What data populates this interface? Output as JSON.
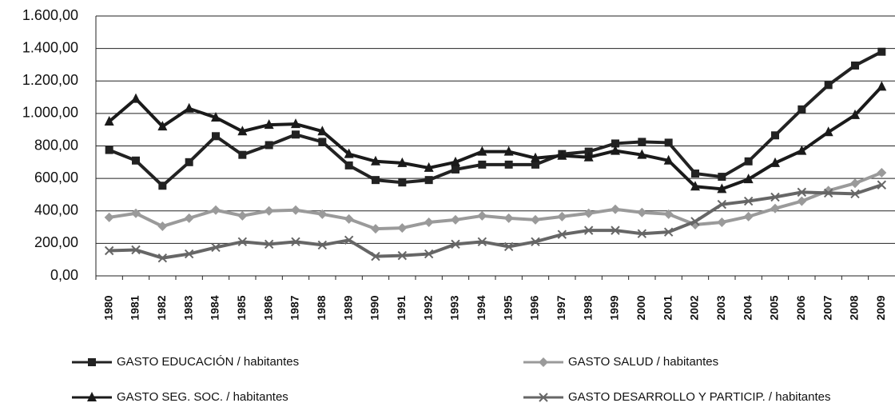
{
  "chart_data": {
    "type": "line",
    "categories": [
      "1980",
      "1981",
      "1982",
      "1983",
      "1984",
      "1985",
      "1986",
      "1987",
      "1988",
      "1989",
      "1990",
      "1991",
      "1992",
      "1993",
      "1994",
      "1995",
      "1996",
      "1997",
      "1998",
      "1999",
      "2000",
      "2001",
      "2002",
      "2003",
      "2004",
      "2005",
      "2006",
      "2007",
      "2008",
      "2009"
    ],
    "series": [
      {
        "name": "GASTO EDUCACIÓN / habitantes",
        "color": "#222222",
        "marker": "square",
        "values": [
          775,
          710,
          555,
          700,
          860,
          745,
          805,
          870,
          825,
          680,
          590,
          575,
          590,
          655,
          685,
          685,
          685,
          750,
          765,
          815,
          825,
          820,
          630,
          610,
          705,
          865,
          1025,
          1175,
          1295,
          1380
        ]
      },
      {
        "name": "GASTO SALUD / habitantes",
        "color": "#9a9a9a",
        "marker": "diamond",
        "values": [
          360,
          385,
          305,
          355,
          405,
          370,
          400,
          405,
          380,
          350,
          290,
          295,
          330,
          345,
          370,
          355,
          345,
          365,
          385,
          410,
          390,
          380,
          315,
          330,
          365,
          415,
          460,
          525,
          570,
          635
        ]
      },
      {
        "name": "GASTO SEG. SOC. / habitantes",
        "color": "#1a1a1a",
        "marker": "triangle",
        "values": [
          950,
          1090,
          920,
          1030,
          975,
          890,
          930,
          935,
          890,
          750,
          705,
          695,
          665,
          700,
          765,
          765,
          725,
          740,
          730,
          770,
          745,
          710,
          550,
          535,
          595,
          695,
          770,
          885,
          990,
          1165
        ]
      },
      {
        "name": "GASTO DESARROLLO Y PARTICIP. / habitantes",
        "color": "#666666",
        "marker": "x",
        "values": [
          155,
          160,
          110,
          135,
          175,
          210,
          195,
          210,
          190,
          220,
          120,
          125,
          135,
          195,
          210,
          180,
          210,
          255,
          280,
          280,
          260,
          270,
          335,
          440,
          460,
          485,
          515,
          510,
          505,
          560
        ]
      }
    ],
    "ylim": [
      0,
      1600
    ],
    "yticks": [
      {
        "value": 0,
        "label": "0,00"
      },
      {
        "value": 200,
        "label": "200,00"
      },
      {
        "value": 400,
        "label": "400,00"
      },
      {
        "value": 600,
        "label": "600,00"
      },
      {
        "value": 800,
        "label": "800,00"
      },
      {
        "value": 1000,
        "label": "1.000,00"
      },
      {
        "value": 1200,
        "label": "1.200,00"
      },
      {
        "value": 1400,
        "label": "1.400,00"
      },
      {
        "value": 1600,
        "label": "1.600,00"
      }
    ],
    "grid": true,
    "legend": "bottom"
  }
}
